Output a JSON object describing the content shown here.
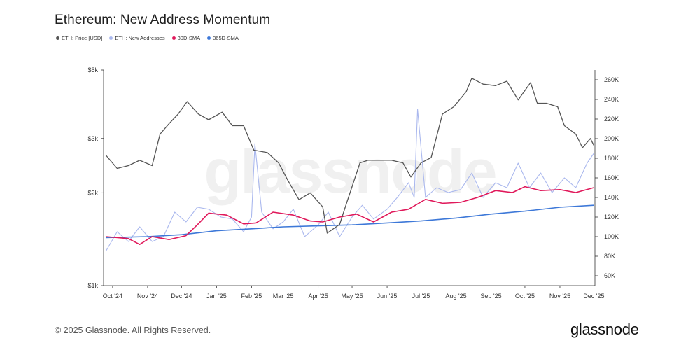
{
  "header": {
    "title": "Ethereum: New Address Momentum"
  },
  "legend": [
    {
      "label": "ETH: Price [USD]",
      "color": "#555555"
    },
    {
      "label": "ETH: New Addresses",
      "color": "#aab8ee"
    },
    {
      "label": "30D-SMA",
      "color": "#e0185a"
    },
    {
      "label": "365D-SMA",
      "color": "#3d78d8"
    }
  ],
  "watermark": "glassnode",
  "footer": {
    "copyright": "© 2025 Glassnode. All Rights Reserved.",
    "brand": "glassnode"
  },
  "chart_data": {
    "type": "line",
    "title": "Ethereum: New Address Momentum",
    "x_ticks": [
      "Oct '24",
      "Nov '24",
      "Dec '24",
      "Jan '25",
      "Feb '25",
      "Mar '25",
      "Apr '25",
      "May '25",
      "Jun '25",
      "Jul '25",
      "Aug '25",
      "Sep '25",
      "Oct '25",
      "Nov '25",
      "Dec '25"
    ],
    "y_left": {
      "scale": "log",
      "ticks": [
        "$1k",
        "$2k",
        "$3k",
        "$5k"
      ],
      "tick_values": [
        1000,
        2000,
        3000,
        5000
      ],
      "range": [
        1000,
        5000
      ]
    },
    "y_right": {
      "scale": "linear",
      "ticks": [
        "60K",
        "80K",
        "100K",
        "120K",
        "140K",
        "160K",
        "180K",
        "200K",
        "220K",
        "240K",
        "260K"
      ],
      "range": [
        50000,
        270000
      ]
    },
    "grid": false,
    "legend_position": "top-left",
    "series": [
      {
        "name": "ETH: Price [USD]",
        "axis": "left",
        "color": "#555555",
        "x": [
          "2024-09-25",
          "2024-10-05",
          "2024-10-15",
          "2024-10-25",
          "2024-11-05",
          "2024-11-12",
          "2024-11-20",
          "2024-11-28",
          "2024-12-06",
          "2024-12-16",
          "2024-12-25",
          "2025-01-06",
          "2025-01-15",
          "2025-01-25",
          "2025-02-03",
          "2025-02-15",
          "2025-02-25",
          "2025-03-05",
          "2025-03-15",
          "2025-03-25",
          "2025-04-05",
          "2025-04-09",
          "2025-04-20",
          "2025-04-25",
          "2025-05-08",
          "2025-05-15",
          "2025-05-25",
          "2025-06-05",
          "2025-06-15",
          "2025-06-22",
          "2025-07-01",
          "2025-07-10",
          "2025-07-20",
          "2025-07-30",
          "2025-08-10",
          "2025-08-15",
          "2025-08-25",
          "2025-09-05",
          "2025-09-15",
          "2025-09-25",
          "2025-10-06",
          "2025-10-12",
          "2025-10-20",
          "2025-10-30",
          "2025-11-05",
          "2025-11-15",
          "2025-11-21",
          "2025-11-28",
          "2025-12-01"
        ],
        "values": [
          2650,
          2400,
          2450,
          2550,
          2450,
          3100,
          3350,
          3600,
          3950,
          3600,
          3450,
          3650,
          3300,
          3300,
          2750,
          2700,
          2500,
          2200,
          1900,
          2000,
          1800,
          1480,
          1580,
          1800,
          2500,
          2550,
          2550,
          2550,
          2500,
          2250,
          2500,
          2600,
          3600,
          3800,
          4250,
          4700,
          4500,
          4450,
          4600,
          4000,
          4550,
          3900,
          3900,
          3800,
          3300,
          3100,
          2800,
          3000,
          2850
        ]
      },
      {
        "name": "ETH: New Addresses",
        "axis": "right",
        "color": "#aab8ee",
        "x": [
          "2024-09-25",
          "2024-10-05",
          "2024-10-15",
          "2024-10-25",
          "2024-11-05",
          "2024-11-15",
          "2024-11-25",
          "2024-12-05",
          "2024-12-15",
          "2024-12-25",
          "2025-01-05",
          "2025-01-15",
          "2025-01-25",
          "2025-02-01",
          "2025-02-04",
          "2025-02-10",
          "2025-02-20",
          "2025-03-01",
          "2025-03-10",
          "2025-03-20",
          "2025-04-01",
          "2025-04-10",
          "2025-04-20",
          "2025-05-01",
          "2025-05-10",
          "2025-05-20",
          "2025-06-01",
          "2025-06-10",
          "2025-06-20",
          "2025-06-25",
          "2025-06-28",
          "2025-07-05",
          "2025-07-15",
          "2025-07-25",
          "2025-08-05",
          "2025-08-15",
          "2025-08-25",
          "2025-09-05",
          "2025-09-15",
          "2025-09-25",
          "2025-10-05",
          "2025-10-15",
          "2025-10-25",
          "2025-11-05",
          "2025-11-15",
          "2025-11-25",
          "2025-12-01"
        ],
        "values": [
          85000,
          105000,
          95000,
          110000,
          95000,
          100000,
          125000,
          115000,
          130000,
          128000,
          120000,
          118000,
          105000,
          120000,
          195000,
          125000,
          108000,
          115000,
          128000,
          100000,
          112000,
          125000,
          100000,
          120000,
          132000,
          118000,
          128000,
          140000,
          155000,
          140000,
          230000,
          140000,
          150000,
          145000,
          148000,
          165000,
          140000,
          155000,
          150000,
          175000,
          150000,
          165000,
          145000,
          160000,
          150000,
          175000,
          185000
        ]
      },
      {
        "name": "30D-SMA",
        "axis": "right",
        "color": "#e0185a",
        "x": [
          "2024-09-25",
          "2024-10-15",
          "2024-10-25",
          "2024-11-05",
          "2024-11-20",
          "2024-12-05",
          "2024-12-15",
          "2024-12-25",
          "2025-01-10",
          "2025-01-25",
          "2025-02-05",
          "2025-02-20",
          "2025-03-10",
          "2025-03-25",
          "2025-04-05",
          "2025-04-20",
          "2025-05-05",
          "2025-05-20",
          "2025-06-05",
          "2025-06-20",
          "2025-07-05",
          "2025-07-20",
          "2025-08-05",
          "2025-08-20",
          "2025-09-05",
          "2025-09-20",
          "2025-10-01",
          "2025-10-15",
          "2025-11-01",
          "2025-11-15",
          "2025-12-01"
        ],
        "values": [
          100000,
          98000,
          92000,
          100000,
          97000,
          101000,
          112000,
          124000,
          122000,
          113000,
          114000,
          125000,
          122000,
          116000,
          115000,
          120000,
          123000,
          115000,
          125000,
          128000,
          138000,
          134000,
          135000,
          140000,
          147000,
          145000,
          151000,
          147000,
          148000,
          145000,
          150000
        ]
      },
      {
        "name": "365D-SMA",
        "axis": "right",
        "color": "#3d78d8",
        "x": [
          "2024-09-25",
          "2024-11-01",
          "2024-12-01",
          "2025-01-01",
          "2025-02-01",
          "2025-03-01",
          "2025-04-01",
          "2025-05-01",
          "2025-06-01",
          "2025-07-01",
          "2025-08-01",
          "2025-09-01",
          "2025-10-01",
          "2025-11-01",
          "2025-12-01"
        ],
        "values": [
          99000,
          100000,
          102000,
          106000,
          108000,
          110000,
          111000,
          112000,
          114000,
          116000,
          119000,
          123000,
          126000,
          130000,
          132000
        ]
      }
    ]
  }
}
